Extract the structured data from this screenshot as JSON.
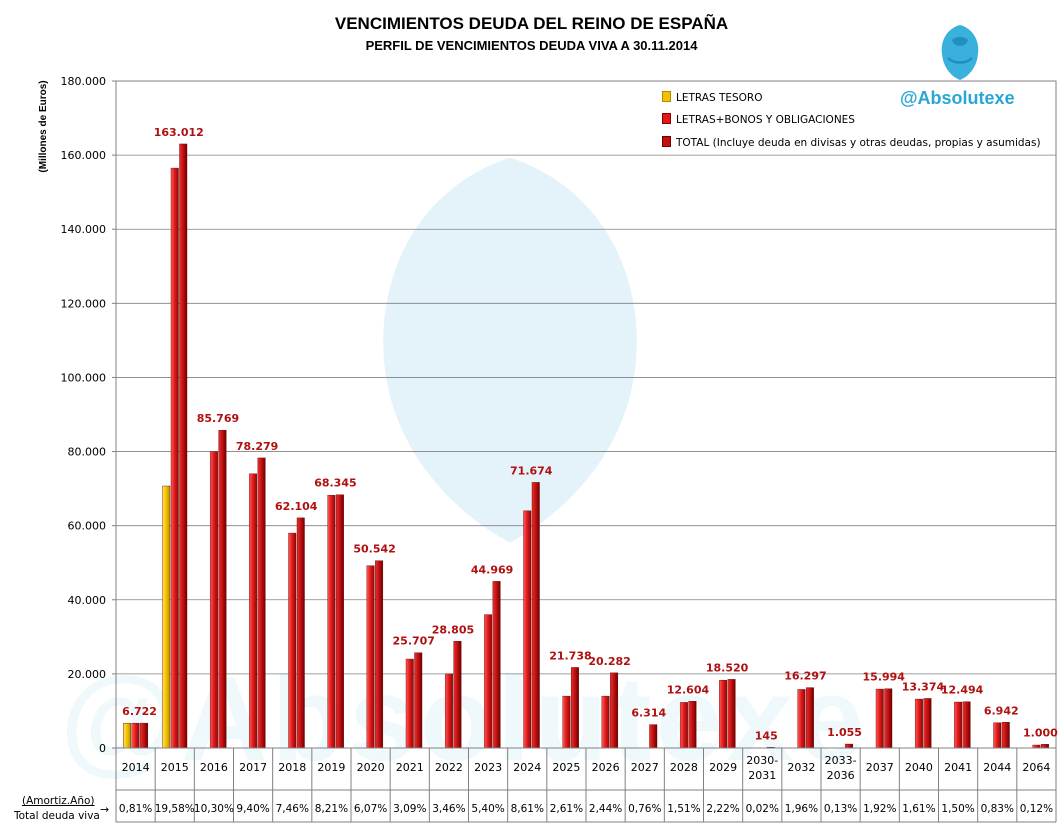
{
  "title": "VENCIMIENTOS DEUDA DEL REINO DE ESPAÑA",
  "subtitle": "PERFIL DE VENCIMIENTOS DEUDA VIVA A 30.11.2014",
  "brand": "@Absolutexe",
  "table_labels": {
    "row1": "(Amortiz.Año)",
    "row2": "Total deuda viva",
    "arrow": "→"
  },
  "colors": {
    "letras": "#f2c200",
    "bonos": "#e01818",
    "total": "#c01010",
    "label": "#b01010",
    "grid": "#808080"
  },
  "chart_data": {
    "type": "bar",
    "ylabel": "(Millones de Euros)",
    "ylim": [
      0,
      180000
    ],
    "yticks": [
      "0",
      "20.000",
      "40.000",
      "60.000",
      "80.000",
      "100.000",
      "120.000",
      "140.000",
      "160.000",
      "180.000"
    ],
    "ytick_values": [
      0,
      20000,
      40000,
      60000,
      80000,
      100000,
      120000,
      140000,
      160000,
      180000
    ],
    "grid": true,
    "legend_position": "top-right",
    "categories": [
      "2014",
      "2015",
      "2016",
      "2017",
      "2018",
      "2019",
      "2020",
      "2021",
      "2022",
      "2023",
      "2024",
      "2025",
      "2026",
      "2027",
      "2028",
      "2029",
      "2030-\n2031",
      "2032",
      "2033-\n2036",
      "2037",
      "2040",
      "2041",
      "2044",
      "2064"
    ],
    "series": [
      {
        "name": "LETRAS TESORO",
        "values": [
          6700,
          70700,
          0,
          0,
          0,
          0,
          0,
          0,
          0,
          0,
          0,
          0,
          0,
          0,
          0,
          0,
          0,
          0,
          0,
          0,
          0,
          0,
          0,
          0
        ]
      },
      {
        "name": "LETRAS+BONOS Y OBLIGACIONES",
        "values": [
          6700,
          156500,
          80000,
          74000,
          58000,
          68200,
          49200,
          24000,
          20000,
          36000,
          64000,
          14000,
          14000,
          0,
          12300,
          18300,
          0,
          15800,
          0,
          15900,
          13200,
          12400,
          6800,
          800
        ]
      },
      {
        "name": "TOTAL (Incluye deuda en divisas y otras deudas, propias y asumidas)",
        "values": [
          6722,
          163012,
          85769,
          78279,
          62104,
          68345,
          50542,
          25707,
          28805,
          44969,
          71674,
          21738,
          20282,
          6314,
          12604,
          18520,
          145,
          16297,
          1055,
          15994,
          13374,
          12494,
          6942,
          1000
        ]
      }
    ],
    "data_labels": [
      "6.722",
      "163.012",
      "85.769",
      "78.279",
      "62.104",
      "68.345",
      "50.542",
      "25.707",
      "28.805",
      "44.969",
      "71.674",
      "21.738",
      "20.282",
      "6.314",
      "12.604",
      "18.520",
      "145",
      "16.297",
      "1.055",
      "15.994",
      "13.374",
      "12.494",
      "6.942",
      "1.000"
    ],
    "percentages": [
      "0,81%",
      "19,58%",
      "10,30%",
      "9,40%",
      "7,46%",
      "8,21%",
      "6,07%",
      "3,09%",
      "3,46%",
      "5,40%",
      "8,61%",
      "2,61%",
      "2,44%",
      "0,76%",
      "1,51%",
      "2,22%",
      "0,02%",
      "1,96%",
      "0,13%",
      "1,92%",
      "1,61%",
      "1,50%",
      "0,83%",
      "0,12%"
    ]
  }
}
